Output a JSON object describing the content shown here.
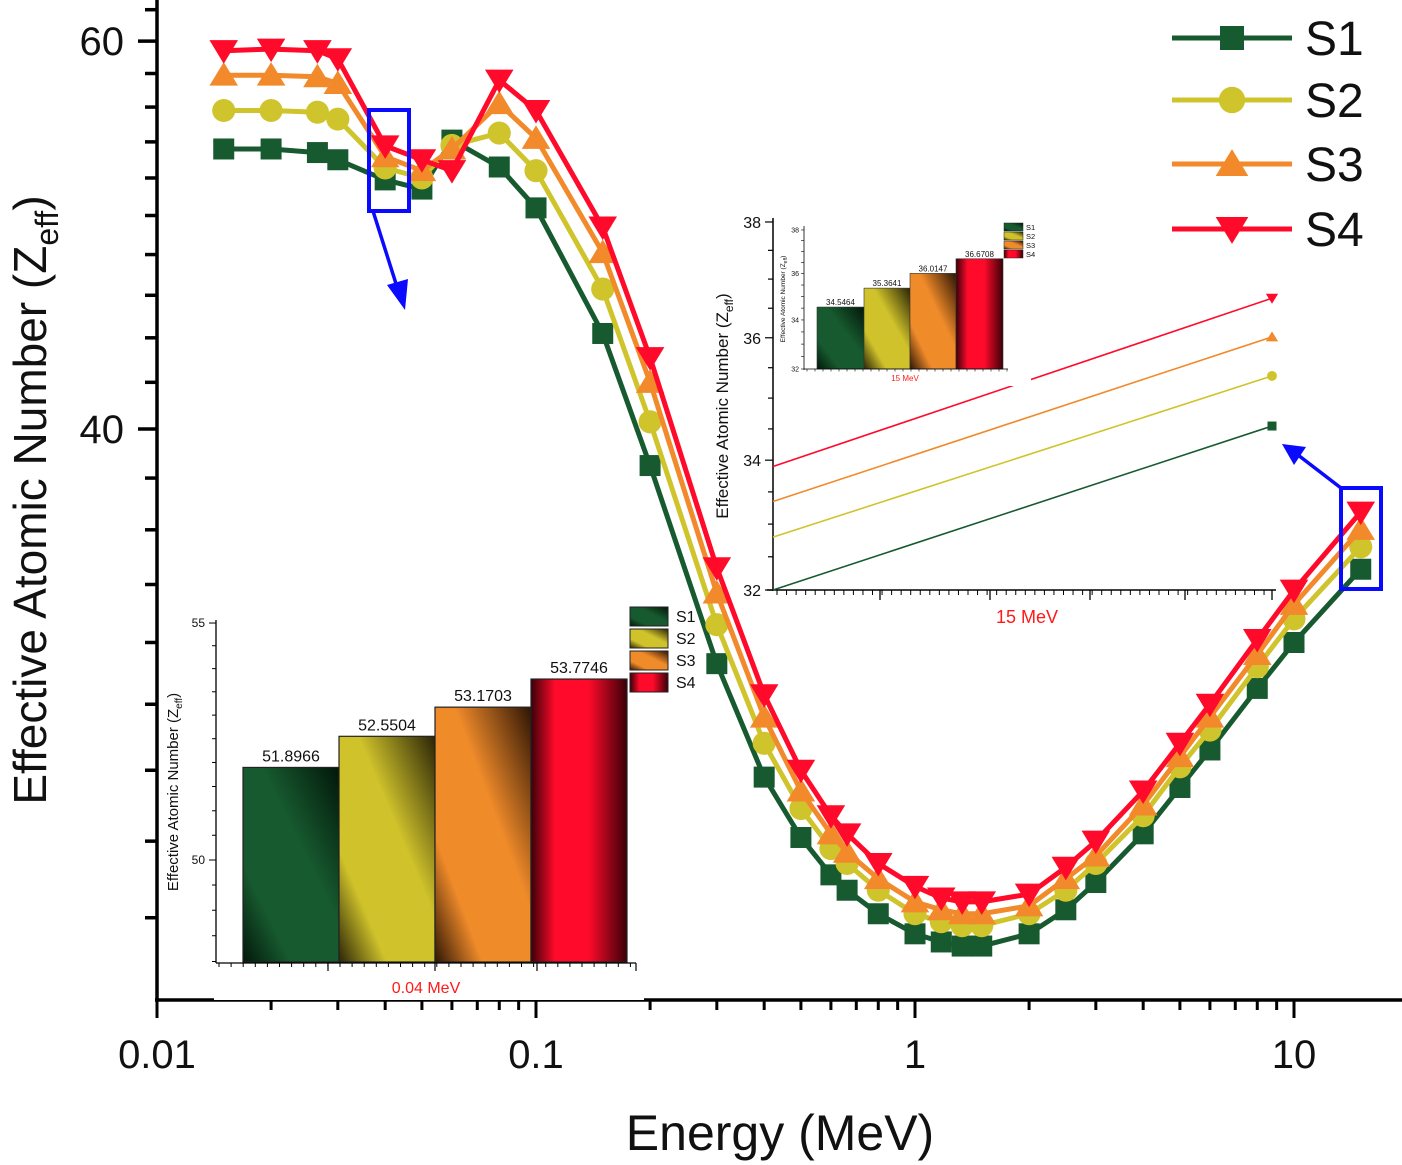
{
  "colors": {
    "S1": "#175a2f",
    "S2": "#d0c42c",
    "S3": "#f28a2c",
    "S4": "#ff0a2a",
    "highlight_box": "#0a0aff"
  },
  "chart_data": [
    {
      "type": "line",
      "xlabel": "Energy (MeV)",
      "ylabel": {
        "text": "Effective Atomic Number (Z",
        "subscript": "eff",
        "suffix": ")"
      },
      "x_scale": "log",
      "y_scale": "log",
      "xlim": [
        0.01,
        19
      ],
      "ylim": [
        22,
        62.6
      ],
      "x_ticks": [
        {
          "value": 0.01,
          "label": "0.01"
        },
        {
          "value": 0.1,
          "label": "0.1"
        },
        {
          "value": 1,
          "label": "1"
        },
        {
          "value": 10,
          "label": "10"
        }
      ],
      "y_ticks": [
        {
          "value": 40,
          "label": "40"
        },
        {
          "value": 60,
          "label": "60"
        }
      ],
      "grid": false,
      "legend_position": "top-right",
      "x": [
        0.015,
        0.02,
        0.0265,
        0.03,
        0.04,
        0.05,
        0.06,
        0.08,
        0.1,
        0.15,
        0.2,
        0.3,
        0.4,
        0.5,
        0.6,
        0.662,
        0.8,
        1,
        1.173,
        1.332,
        1.5,
        2,
        2.5,
        3,
        4,
        5,
        6,
        8,
        10,
        15
      ],
      "series": [
        {
          "name": "S1",
          "marker": "square",
          "values": [
            53.6,
            53.6,
            53.4,
            53.0,
            51.8966,
            51.4,
            54.1,
            52.6,
            50.4,
            44.2,
            38.5,
            31.3,
            27.8,
            26.1,
            25.1,
            24.7,
            24.1,
            23.6,
            23.4,
            23.3,
            23.3,
            23.6,
            24.2,
            24.9,
            26.2,
            27.5,
            28.6,
            30.5,
            32.0,
            34.5464
          ]
        },
        {
          "name": "S2",
          "marker": "circle",
          "values": [
            55.8,
            55.8,
            55.7,
            55.3,
            52.5504,
            52.0,
            53.8,
            54.5,
            52.4,
            46.3,
            40.3,
            32.6,
            28.8,
            26.9,
            25.8,
            25.4,
            24.7,
            24.1,
            23.9,
            23.8,
            23.8,
            24.1,
            24.7,
            25.4,
            26.7,
            28.1,
            29.2,
            31.2,
            32.8,
            35.3641
          ]
        },
        {
          "name": "S3",
          "marker": "triangle-up",
          "values": [
            57.9,
            57.9,
            57.8,
            57.4,
            53.1703,
            52.4,
            53.6,
            56.2,
            54.2,
            48.1,
            42.0,
            33.7,
            29.6,
            27.4,
            26.2,
            25.7,
            25.0,
            24.4,
            24.2,
            24.1,
            24.1,
            24.3,
            25.0,
            25.6,
            27.0,
            28.4,
            29.6,
            31.6,
            33.3,
            36.0147
          ]
        },
        {
          "name": "S4",
          "marker": "triangle-down",
          "values": [
            59.4,
            59.5,
            59.4,
            58.9,
            53.7746,
            53.0,
            52.4,
            57.6,
            55.8,
            49.4,
            43.1,
            34.6,
            30.3,
            28.0,
            26.7,
            26.2,
            25.4,
            24.8,
            24.5,
            24.4,
            24.4,
            24.6,
            25.3,
            26.0,
            27.4,
            28.8,
            30.0,
            32.1,
            33.8,
            36.6708
          ]
        }
      ]
    },
    {
      "type": "bar",
      "xlabel": "0.04 MeV",
      "ylabel": {
        "text": "Effective Atomic Number (Z",
        "subscript": "eff",
        "suffix": ")"
      },
      "ylim": [
        48,
        55
      ],
      "y_ticks": [
        {
          "value": 50,
          "label": "50"
        },
        {
          "value": 55,
          "label": "55"
        }
      ],
      "legend_position": "top-right",
      "categories": [
        "S1",
        "S2",
        "S3",
        "S4"
      ],
      "values": [
        51.8966,
        52.5504,
        53.1703,
        53.7746
      ],
      "data_labels": [
        "51.8966",
        "52.5504",
        "53.1703",
        "53.7746"
      ]
    },
    {
      "type": "line",
      "xlabel": "15 MeV",
      "ylabel": {
        "text": "Effective Atomic Number (Z",
        "subscript": "eff",
        "suffix": ")"
      },
      "y_scale": "log",
      "ylim": [
        32,
        38
      ],
      "y_ticks": [
        {
          "value": 32,
          "label": "32"
        },
        {
          "value": 34,
          "label": "34"
        },
        {
          "value": 36,
          "label": "36"
        },
        {
          "value": 38,
          "label": "38"
        }
      ],
      "series": [
        {
          "name": "S1",
          "marker": "square",
          "start": 32.0,
          "end": 34.5464
        },
        {
          "name": "S2",
          "marker": "circle",
          "start": 32.8,
          "end": 35.3641
        },
        {
          "name": "S3",
          "marker": "triangle-up",
          "start": 33.35,
          "end": 36.0147
        },
        {
          "name": "S4",
          "marker": "triangle-down",
          "start": 33.9,
          "end": 36.6708
        }
      ]
    },
    {
      "type": "bar",
      "xlabel": "15 MeV",
      "ylabel": {
        "text": "Effective Atomic Number (Z",
        "subscript": "eff",
        "suffix": ")"
      },
      "ylim": [
        32,
        38
      ],
      "y_ticks": [
        {
          "value": 32,
          "label": "32"
        },
        {
          "value": 34,
          "label": "34"
        },
        {
          "value": 36,
          "label": "36"
        },
        {
          "value": 38,
          "label": "38"
        }
      ],
      "legend_position": "top-right",
      "categories": [
        "S1",
        "S2",
        "S3",
        "S4"
      ],
      "values": [
        34.5464,
        35.3641,
        36.0147,
        36.6708
      ],
      "data_labels": [
        "34.5464",
        "35.3641",
        "36.0147",
        "36.6708"
      ]
    }
  ]
}
